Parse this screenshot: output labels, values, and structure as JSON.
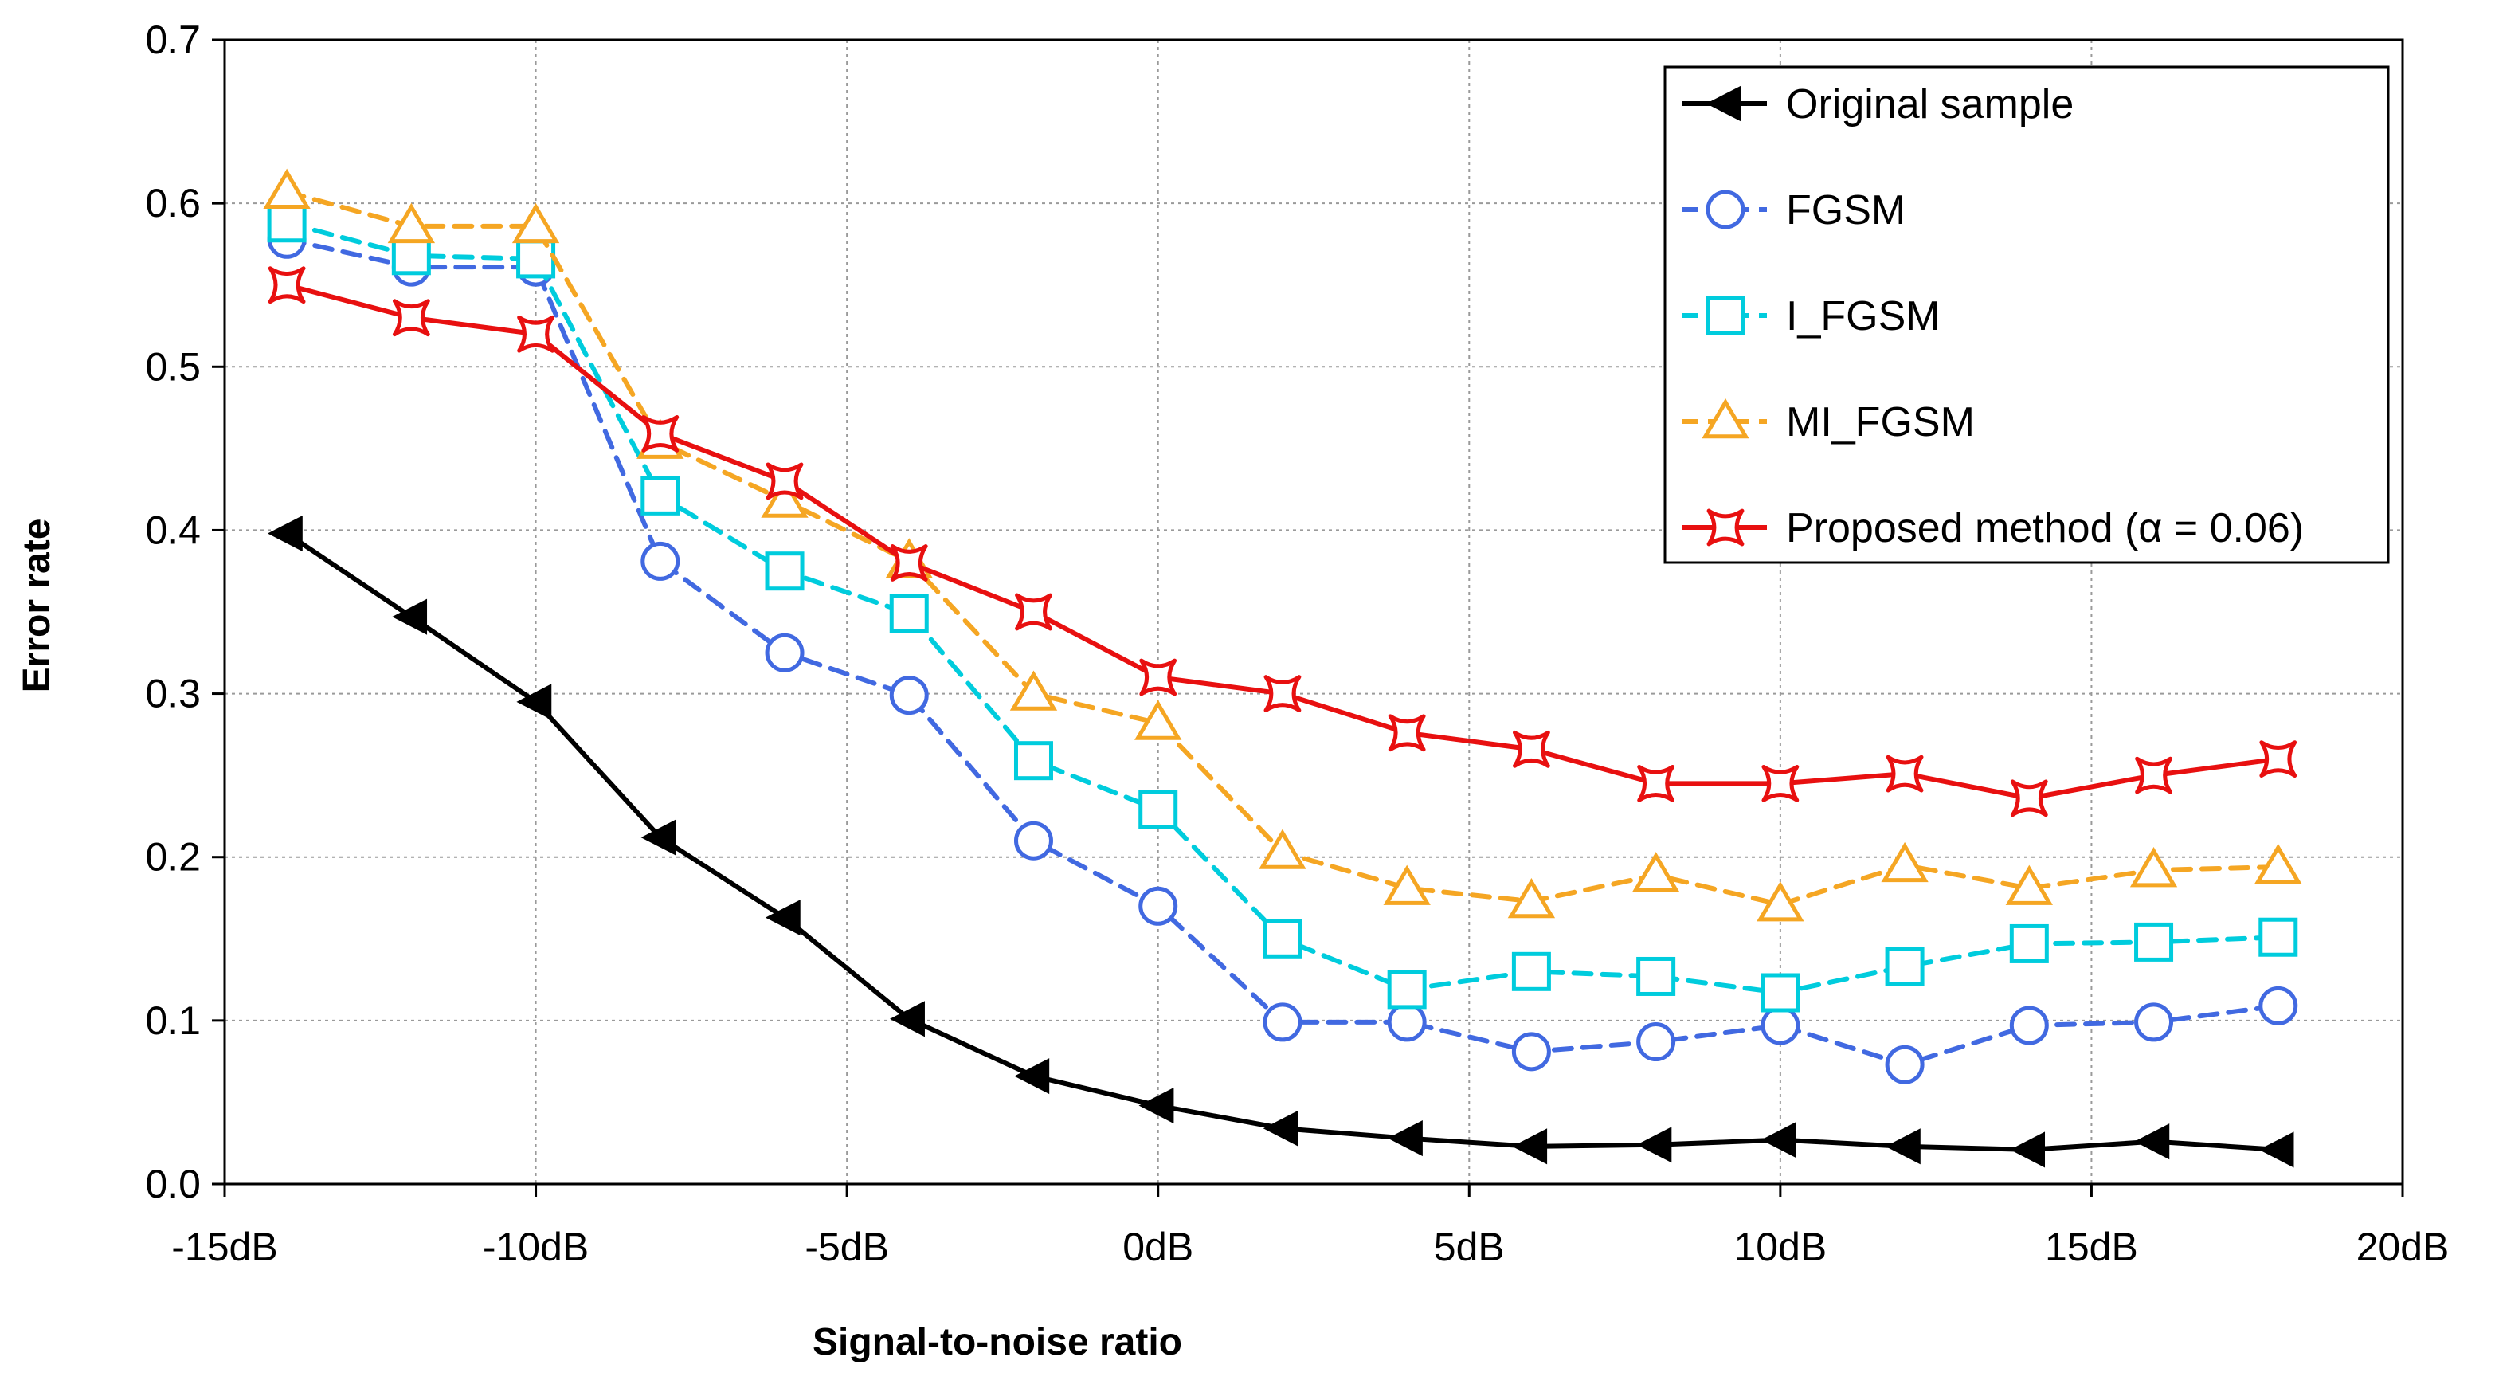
{
  "chart_data": {
    "type": "line",
    "title": "",
    "xlabel": "Signal-to-noise ratio",
    "ylabel": "Error rate",
    "xlim": [
      -15,
      20
    ],
    "ylim": [
      0,
      0.7
    ],
    "grid": true,
    "legend_position": "top-right",
    "x_ticks": [
      -15,
      -10,
      -5,
      0,
      5,
      10,
      15,
      20
    ],
    "x_tick_labels": [
      "-15dB",
      "-10dB",
      "-5dB",
      "0dB",
      "5dB",
      "10dB",
      "15dB",
      "20dB"
    ],
    "y_ticks": [
      0,
      0.1,
      0.2,
      0.3,
      0.4,
      0.5,
      0.6,
      0.7
    ],
    "y_tick_labels": [
      "0.0",
      "0.1",
      "0.2",
      "0.3",
      "0.4",
      "0.5",
      "0.6",
      "0.7"
    ],
    "x": [
      -14,
      -12,
      -10,
      -8,
      -6,
      -4,
      -2,
      0,
      2,
      4,
      6,
      8,
      10,
      12,
      14,
      16,
      18
    ],
    "series": [
      {
        "name": "Original sample",
        "color": "#000000",
        "dash": "solid",
        "marker": "triangle-left",
        "values": [
          0.398,
          0.347,
          0.295,
          0.212,
          0.163,
          0.101,
          0.066,
          0.048,
          0.034,
          0.028,
          0.023,
          0.024,
          0.027,
          0.023,
          0.021,
          0.026,
          0.021
        ]
      },
      {
        "name": "FGSM",
        "color": "#4169E1",
        "dash": "dashed",
        "marker": "circle",
        "values": [
          0.578,
          0.561,
          0.561,
          0.381,
          0.325,
          0.299,
          0.21,
          0.17,
          0.099,
          0.099,
          0.081,
          0.087,
          0.097,
          0.073,
          0.097,
          0.099,
          0.109
        ]
      },
      {
        "name": "I_FGSM",
        "color": "#00CCDD",
        "dash": "dashed",
        "marker": "square",
        "values": [
          0.588,
          0.568,
          0.566,
          0.421,
          0.375,
          0.349,
          0.259,
          0.229,
          0.15,
          0.119,
          0.13,
          0.127,
          0.117,
          0.133,
          0.147,
          0.148,
          0.151
        ]
      },
      {
        "name": "MI_FGSM",
        "color": "#F5A623",
        "dash": "dashed",
        "marker": "triangle-up",
        "values": [
          0.607,
          0.586,
          0.586,
          0.454,
          0.418,
          0.381,
          0.3,
          0.282,
          0.203,
          0.181,
          0.173,
          0.189,
          0.171,
          0.195,
          0.181,
          0.192,
          0.194
        ]
      },
      {
        "name": "Proposed method (α = 0.06)",
        "color": "#E81010",
        "dash": "solid",
        "marker": "x-square",
        "values": [
          0.55,
          0.53,
          0.52,
          0.459,
          0.43,
          0.38,
          0.35,
          0.31,
          0.3,
          0.276,
          0.266,
          0.245,
          0.245,
          0.251,
          0.236,
          0.25,
          0.26
        ]
      }
    ]
  }
}
